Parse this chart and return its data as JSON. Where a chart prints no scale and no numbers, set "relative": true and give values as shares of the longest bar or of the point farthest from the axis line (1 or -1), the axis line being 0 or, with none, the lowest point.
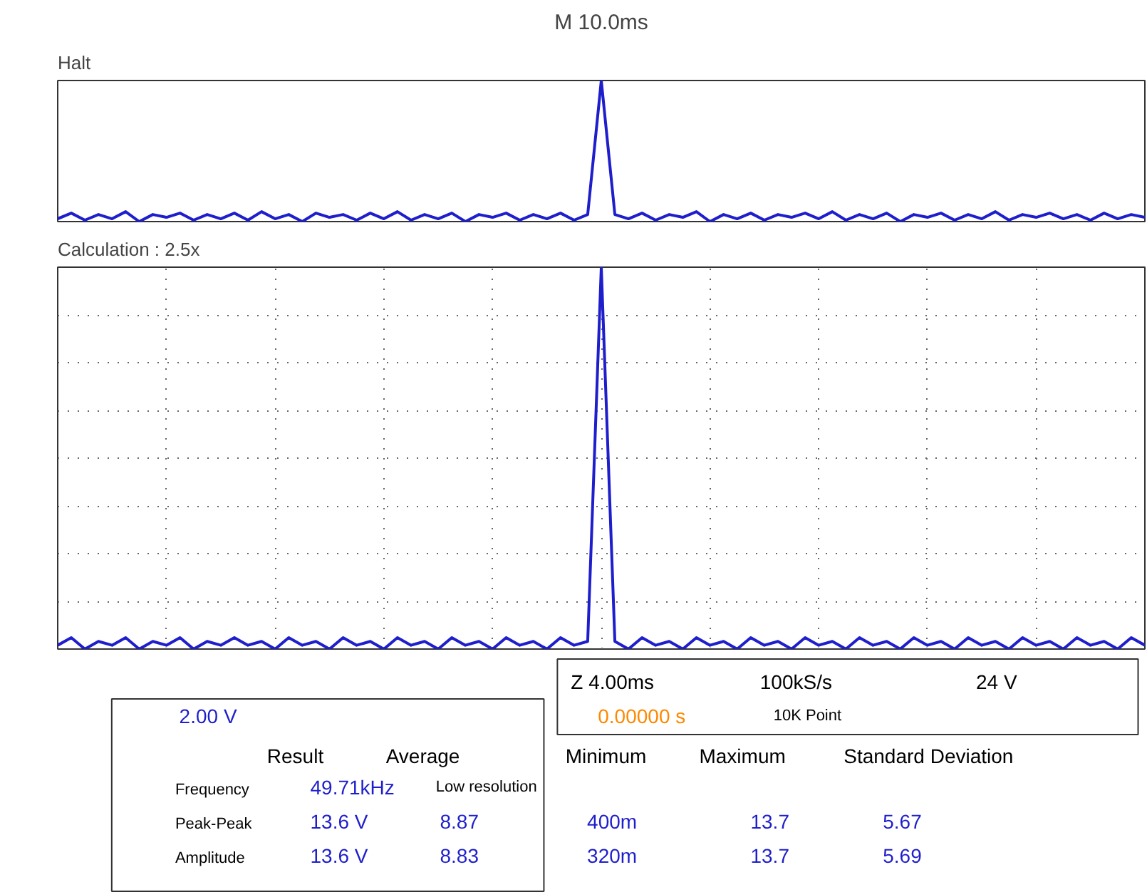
{
  "chart_data": [
    {
      "type": "line",
      "title": "Halt",
      "subtitle": "M 10.0ms",
      "relative": true,
      "categories": [
        null,
        null,
        null,
        null,
        null,
        null,
        null,
        null,
        null,
        null,
        null,
        null,
        null,
        null,
        null,
        null,
        null,
        null,
        null,
        null,
        null,
        null,
        null,
        null,
        null,
        null,
        null,
        null,
        null,
        null,
        null,
        null,
        null,
        null,
        null,
        null,
        null,
        null,
        null,
        null,
        null,
        null,
        null,
        null,
        null,
        null,
        null,
        null,
        null,
        null,
        null,
        null,
        null,
        null,
        null,
        null,
        null,
        null,
        null,
        null,
        null,
        null,
        null,
        null,
        null,
        null,
        null,
        null,
        null,
        null,
        null,
        null,
        null,
        null,
        null,
        null,
        null,
        null,
        null,
        null,
        null
      ],
      "series": [
        {
          "color": "#1e1ecc",
          "values": [
            0.02,
            0.06,
            0.01,
            0.05,
            0.02,
            0.07,
            0.0,
            0.05,
            0.03,
            0.06,
            0.01,
            0.05,
            0.02,
            0.06,
            0.01,
            0.07,
            0.02,
            0.05,
            0.0,
            0.06,
            0.03,
            0.05,
            0.01,
            0.06,
            0.02,
            0.07,
            0.01,
            0.05,
            0.02,
            0.06,
            0.0,
            0.05,
            0.03,
            0.06,
            0.01,
            0.05,
            0.02,
            0.06,
            0.01,
            0.05,
            1.0,
            0.05,
            0.02,
            0.06,
            0.01,
            0.05,
            0.03,
            0.07,
            0.0,
            0.05,
            0.02,
            0.06,
            0.01,
            0.05,
            0.03,
            0.06,
            0.02,
            0.07,
            0.01,
            0.05,
            0.02,
            0.06,
            0.0,
            0.05,
            0.03,
            0.06,
            0.01,
            0.05,
            0.02,
            0.07,
            0.01,
            0.05,
            0.03,
            0.06,
            0.02,
            0.05,
            0.01,
            0.06,
            0.02,
            0.05,
            0.03
          ]
        }
      ]
    },
    {
      "type": "line",
      "title": "Calculation : 2.5x",
      "relative": true,
      "grid": true,
      "categories": [
        null,
        null,
        null,
        null,
        null,
        null,
        null,
        null,
        null,
        null,
        null,
        null,
        null,
        null,
        null,
        null,
        null,
        null,
        null,
        null,
        null,
        null,
        null,
        null,
        null,
        null,
        null,
        null,
        null,
        null,
        null,
        null,
        null,
        null,
        null,
        null,
        null,
        null,
        null,
        null,
        null,
        null,
        null,
        null,
        null,
        null,
        null,
        null,
        null,
        null,
        null,
        null,
        null,
        null,
        null,
        null,
        null,
        null,
        null,
        null,
        null,
        null,
        null,
        null,
        null,
        null,
        null,
        null,
        null,
        null,
        null,
        null,
        null,
        null,
        null,
        null,
        null,
        null,
        null,
        null,
        null
      ],
      "series": [
        {
          "color": "#1e1ecc",
          "values": [
            0.01,
            0.03,
            0.0,
            0.02,
            0.01,
            0.03,
            0.0,
            0.02,
            0.01,
            0.03,
            0.0,
            0.02,
            0.01,
            0.03,
            0.01,
            0.02,
            0.0,
            0.03,
            0.01,
            0.02,
            0.0,
            0.03,
            0.01,
            0.02,
            0.0,
            0.03,
            0.01,
            0.02,
            0.0,
            0.03,
            0.01,
            0.02,
            0.0,
            0.03,
            0.01,
            0.02,
            0.0,
            0.03,
            0.01,
            0.02,
            1.0,
            0.02,
            0.0,
            0.03,
            0.01,
            0.02,
            0.0,
            0.03,
            0.01,
            0.02,
            0.0,
            0.03,
            0.01,
            0.02,
            0.0,
            0.03,
            0.01,
            0.02,
            0.0,
            0.03,
            0.01,
            0.02,
            0.0,
            0.03,
            0.01,
            0.02,
            0.0,
            0.03,
            0.01,
            0.02,
            0.0,
            0.03,
            0.01,
            0.02,
            0.0,
            0.03,
            0.01,
            0.02,
            0.0,
            0.03,
            0.01
          ]
        }
      ]
    },
    {
      "type": "other",
      "annotations": [
        "Z 4.00ms",
        "100kS/s",
        "24 V",
        "2.00 V",
        "0.00000 s",
        "10K Point",
        "Result",
        "Average",
        "Minimum",
        "Maximum",
        "Standard Deviation",
        "Frequency",
        "49.71kHz",
        "Low resolution",
        "Peak-Peak",
        "13.6 V",
        "8.87",
        "400m",
        "13.7",
        "5.67",
        "Amplitude",
        "13.6 V",
        "8.83",
        "320m",
        "13.7",
        "5.69"
      ]
    }
  ]
}
